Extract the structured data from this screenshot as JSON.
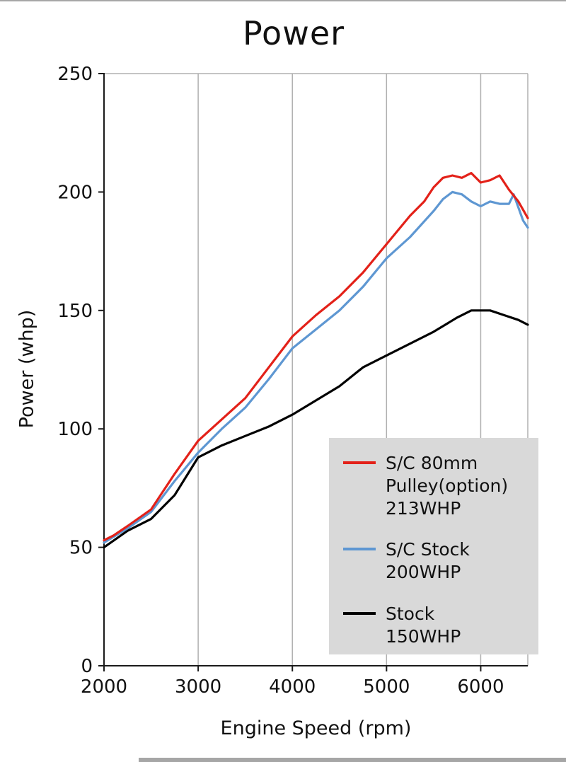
{
  "chart_data": {
    "type": "line",
    "title": "Power",
    "xlabel": "Engine Speed (rpm)",
    "ylabel": "Power (whp)",
    "xlim": [
      2000,
      6500
    ],
    "ylim": [
      0,
      250
    ],
    "x_ticks": [
      2000,
      3000,
      4000,
      5000,
      6000
    ],
    "y_ticks": [
      0,
      50,
      100,
      150,
      200,
      250
    ],
    "grid": "vertical-gridlines-plus-top-right-border",
    "legend_position": "lower-right",
    "colors": {
      "grid": "#b0b0b0",
      "axis": "#1a1a1a",
      "legend_bg": "#d9d9d9"
    },
    "series": [
      {
        "name": "Stock 150WHP",
        "color": "#000000",
        "x": [
          2000,
          2250,
          2500,
          2750,
          3000,
          3250,
          3500,
          3750,
          4000,
          4250,
          4500,
          4750,
          5000,
          5250,
          5500,
          5750,
          5900,
          6000,
          6100,
          6250,
          6400,
          6500
        ],
        "y": [
          50,
          57,
          62,
          72,
          88,
          93,
          97,
          101,
          106,
          112,
          118,
          126,
          131,
          136,
          141,
          147,
          150,
          150,
          150,
          148,
          146,
          144
        ]
      },
      {
        "name": "S/C Stock 200WHP",
        "color": "#5e97d2",
        "x": [
          2000,
          2250,
          2500,
          2750,
          3000,
          3250,
          3500,
          3750,
          4000,
          4250,
          4500,
          4750,
          5000,
          5250,
          5500,
          5600,
          5700,
          5800,
          5900,
          6000,
          6100,
          6200,
          6300,
          6350,
          6450,
          6500
        ],
        "y": [
          52,
          58,
          65,
          78,
          90,
          100,
          109,
          121,
          134,
          142,
          150,
          160,
          172,
          181,
          192,
          197,
          200,
          199,
          196,
          194,
          196,
          195,
          195,
          199,
          188,
          185
        ]
      },
      {
        "name": "S/C 80mm Pulley(option) 213WHP",
        "color": "#e32119",
        "x": [
          2000,
          2100,
          2250,
          2500,
          2750,
          3000,
          3250,
          3500,
          3750,
          4000,
          4250,
          4500,
          4750,
          5000,
          5250,
          5400,
          5500,
          5600,
          5700,
          5800,
          5900,
          6000,
          6100,
          6200,
          6300,
          6400,
          6500
        ],
        "y": [
          53,
          55,
          59,
          66,
          81,
          95,
          104,
          113,
          126,
          139,
          148,
          156,
          166,
          178,
          190,
          196,
          202,
          206,
          207,
          206,
          208,
          204,
          205,
          207,
          201,
          196,
          189
        ]
      }
    ]
  },
  "legend": {
    "items": [
      {
        "label": "S/C 80mm\nPulley(option)\n213WHP",
        "color": "#e32119"
      },
      {
        "label": "S/C Stock\n200WHP",
        "color": "#5e97d2"
      },
      {
        "label": "Stock\n150WHP",
        "color": "#000000"
      }
    ]
  }
}
